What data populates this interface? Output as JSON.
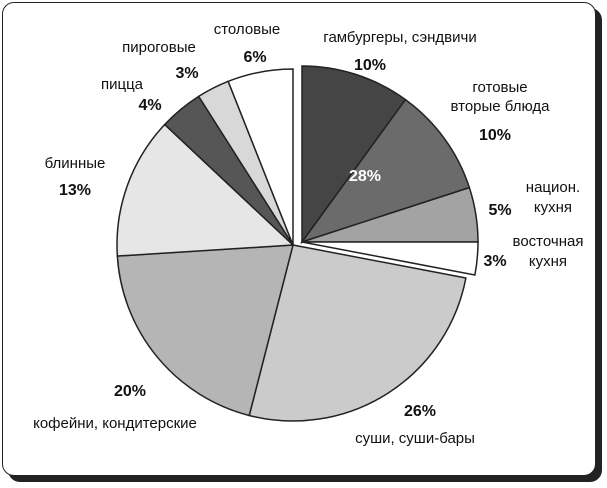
{
  "chart_data": {
    "type": "pie",
    "start_angle": "12 o'clock",
    "direction": "clockwise",
    "slices": [
      {
        "label": "гамбургеры, сэндвичи",
        "value": 10,
        "pct": "10%",
        "color": "#454545",
        "exploded": true
      },
      {
        "label": "готовые вторые блюда",
        "label_lines": [
          "готовые",
          "вторые блюда"
        ],
        "value": 10,
        "pct": "10%",
        "color": "#6b6b6b",
        "exploded": true
      },
      {
        "label": "национ. кухня",
        "label_lines": [
          "национ.",
          "кухня"
        ],
        "value": 5,
        "pct": "5%",
        "color": "#a3a3a3",
        "exploded": true
      },
      {
        "label": "восточная кухня",
        "label_lines": [
          "восточная",
          "кухня"
        ],
        "value": 3,
        "pct": "3%",
        "color": "#ffffff",
        "exploded": true
      },
      {
        "label": "суши, суши-бары",
        "value": 26,
        "pct": "26%",
        "color": "#cbcbcb",
        "exploded": false
      },
      {
        "label": "кофейни, кондитерские",
        "value": 20,
        "pct": "20%",
        "color": "#b5b5b5",
        "exploded": false
      },
      {
        "label": "блинные",
        "value": 13,
        "pct": "13%",
        "color": "#e6e6e6",
        "exploded": false
      },
      {
        "label": "пицца",
        "value": 4,
        "pct": "4%",
        "color": "#565656",
        "exploded": false
      },
      {
        "label": "пироговые",
        "value": 3,
        "pct": "3%",
        "color": "#d8d8d8",
        "exploded": false
      },
      {
        "label": "столовые",
        "value": 6,
        "pct": "6%",
        "color": "#ffffff",
        "exploded": false
      }
    ],
    "group_annotation": "28%"
  }
}
